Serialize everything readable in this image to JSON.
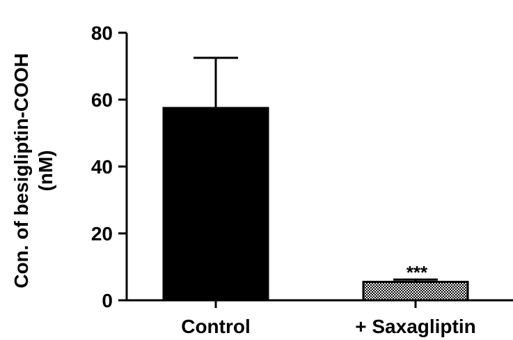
{
  "chart_data": {
    "type": "bar",
    "categories": [
      "Control",
      "+ Saxagliptin"
    ],
    "values": [
      57.5,
      5.5
    ],
    "error_upper": [
      72.5,
      6.2
    ],
    "fills": [
      "solid",
      "crosshatch"
    ],
    "annotations": [
      "",
      "***"
    ],
    "ylabel": "Con. of besigliptin-COOH\n(nM)",
    "xlabel": "",
    "ylim": [
      0,
      80
    ],
    "yticks": [
      0,
      20,
      40,
      60,
      80
    ],
    "grid": false,
    "colors": {
      "bar": "#000000",
      "axis": "#000000",
      "background": "#ffffff"
    }
  }
}
